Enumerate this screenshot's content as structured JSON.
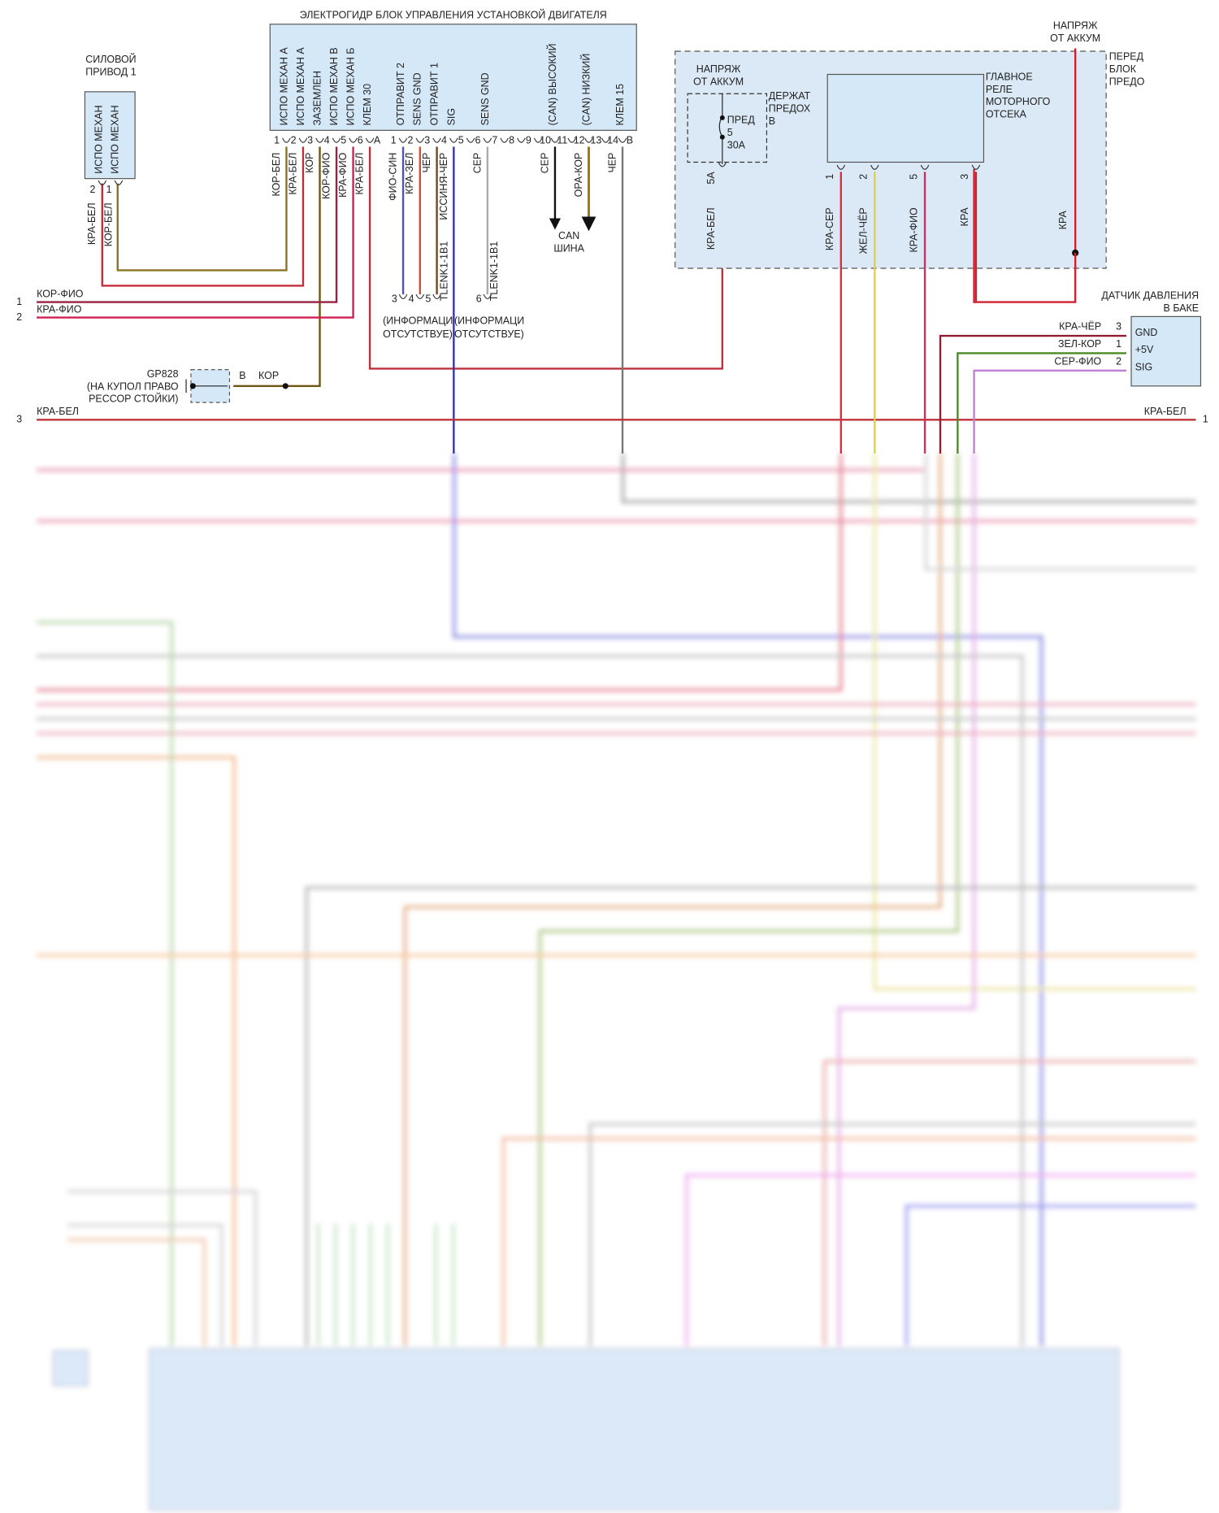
{
  "ecu": {
    "title": "ЭЛЕКТРОГИДР БЛОК УПРАВЛЕНИЯ УСТАНОВКОЙ ДВИГАТЕЛЯ",
    "connector_a": "A",
    "connector_b": "B",
    "pins_a": [
      {
        "num": "1",
        "label": "ИСПО МЕХАН А",
        "wire": "КОР-БЕЛ"
      },
      {
        "num": "2",
        "label": "ИСПО МЕХАН А",
        "wire": "КРА-БЕЛ"
      },
      {
        "num": "3",
        "label": "ЗАЗЕМЛЕН",
        "wire": "КОР"
      },
      {
        "num": "4",
        "label": "ИСПО МЕХАН В",
        "wire": "КОР-ФИО"
      },
      {
        "num": "5",
        "label": "ИСПО МЕХАН Б",
        "wire": "КРА-ФИО"
      },
      {
        "num": "6",
        "label": "КЛЕМ 30",
        "wire": "КРА-БЕЛ"
      }
    ],
    "pins_b": [
      {
        "num": "1",
        "label": "ОТПРАВИТ 2",
        "wire": "ФИО-СИН"
      },
      {
        "num": "2",
        "label": "SENS GND",
        "wire": "КРА-ЗЕЛ"
      },
      {
        "num": "3",
        "label": "ОТПРАВИТ 1",
        "wire": "ЧЕР"
      },
      {
        "num": "4",
        "label": "SIG",
        "wire": "ИССИНЯ-ЧЕР"
      },
      {
        "num": "5"
      },
      {
        "num": "6",
        "label": "SENS GND",
        "wire": "СЕР"
      },
      {
        "num": "7"
      },
      {
        "num": "8"
      },
      {
        "num": "9"
      },
      {
        "num": "10",
        "label": "(CAN) ВЫСОКИЙ",
        "wire": "СЕР"
      },
      {
        "num": "11"
      },
      {
        "num": "12",
        "label": "(CAN) НИЗКИЙ",
        "wire": "ОРА-КОР"
      },
      {
        "num": "13"
      },
      {
        "num": "14",
        "label": "КЛЕМ 15",
        "wire": "ЧЕР"
      }
    ]
  },
  "actuator": {
    "title_lines": [
      "СИЛОВОЙ",
      "ПРИВОД 1"
    ],
    "pins": [
      {
        "num": "2",
        "label": "ИСПО МЕХАН",
        "wire": "КРА-БЕЛ"
      },
      {
        "num": "1",
        "label": "ИСПО МЕХАН",
        "wire": "КОР-БЕЛ"
      }
    ]
  },
  "left_lines": [
    {
      "num": "1",
      "wire": "КОР-ФИО"
    },
    {
      "num": "2",
      "wire": "КРА-ФИО"
    },
    {
      "num": "3",
      "wire": "КРА-БЕЛ"
    }
  ],
  "right_line": {
    "num": "1",
    "wire": "КРА-БЕЛ"
  },
  "ground": {
    "lines": [
      "GP828",
      "(НА КУПОЛ ПРАВО",
      "РЕССОР СТОЙКИ)"
    ],
    "pin": "B",
    "wire": "КОР"
  },
  "splices": [
    {
      "pins": [
        "3",
        "4",
        "5"
      ],
      "code": "TLENK1-1B1",
      "note": [
        "(ИНФОРМАЦИ",
        "ОТСУТСТВУЕ)"
      ]
    },
    {
      "pins": [
        "6"
      ],
      "code": "TLENK1-1B1",
      "note": [
        "(ИНФОРМАЦИ",
        "ОТСУТСТВУЕ)"
      ]
    }
  ],
  "can": {
    "lines": [
      "CAN",
      "ШИНА"
    ]
  },
  "fuse_block": {
    "title_lines": [
      "ПЕРЕД",
      "БЛОК",
      "ПРЕДО"
    ],
    "supply_lines": [
      "НАПРЯЖ",
      "ОТ АККУМ"
    ],
    "supply_wire": "КРА"
  },
  "fuse_holder": {
    "supply_lines": [
      "НАПРЯЖ",
      "ОТ АККУМ"
    ],
    "title_lines": [
      "ДЕРЖАТ",
      "ПРЕДОХ",
      "В"
    ],
    "fuse_lines": [
      "ПРЕД",
      "5",
      "30A"
    ],
    "pin": "5A",
    "wire": "КРА-БЕЛ"
  },
  "relay": {
    "title_lines": [
      "ГЛАВНОЕ",
      "РЕЛЕ",
      "МОТОРНОГО",
      "ОТСЕКА"
    ],
    "pins": [
      {
        "num": "1",
        "wire": "КРА-СЕР"
      },
      {
        "num": "2",
        "wire": "ЖЕЛ-ЧЁР"
      },
      {
        "num": "5",
        "wire": "КРА-ФИО"
      },
      {
        "num": "3",
        "wire": "КРА"
      }
    ]
  },
  "sensor": {
    "title_lines": [
      "ДАТЧИК ДАВЛЕНИЯ",
      "В БАКЕ"
    ],
    "pins": [
      {
        "num": "3",
        "label": "GND",
        "wire": "КРА-ЧЁР"
      },
      {
        "num": "1",
        "label": "+5V",
        "wire": "ЗЕЛ-КОР"
      },
      {
        "num": "2",
        "label": "SIG",
        "wire": "СЕР-ФИО"
      }
    ]
  }
}
